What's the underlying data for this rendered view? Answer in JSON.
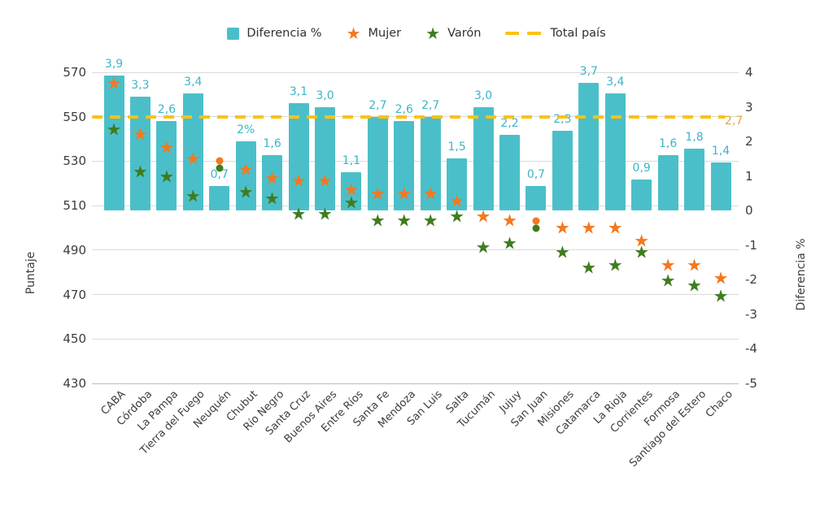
{
  "legend": {
    "bars_label": "Diferencia %",
    "mujer_label": "Mujer",
    "varon_label": "Varón",
    "total_label": "Total país"
  },
  "colors": {
    "bar": "#4bbfc9",
    "bar_value_label": "#3db4c8",
    "mujer": "#f4781f",
    "varon": "#3f7c1e",
    "total_line": "#fcc211",
    "total_line_label": "#e9a62f",
    "tick_text": "#3d3d3d",
    "gridline": "#dadada"
  },
  "chart_data": {
    "type": "bar",
    "categories": [
      "CABA",
      "Córdoba",
      "La Pampa",
      "Tierra del Fuego",
      "Neuquén",
      "Chubut",
      "Río Negro",
      "Santa Cruz",
      "Buenos Aires",
      "Entre Ríos",
      "Santa Fe",
      "Mendoza",
      "San Luis",
      "Salta",
      "Tucumán",
      "Jujuy",
      "San Juan",
      "Misiones",
      "Catamarca",
      "La Rioja",
      "Corrientes",
      "Formosa",
      "Santiago del Estero",
      "Chaco"
    ],
    "series": [
      {
        "name": "Diferencia %",
        "type": "bar",
        "axis": "right",
        "values": [
          3.9,
          3.3,
          2.6,
          3.4,
          0.7,
          2.0,
          1.6,
          3.1,
          3.0,
          1.1,
          2.7,
          2.6,
          2.7,
          1.5,
          3.0,
          2.2,
          0.7,
          2.3,
          3.7,
          3.4,
          0.9,
          1.6,
          1.8,
          1.4
        ],
        "labels": [
          "3,9",
          "3,3",
          "2,6",
          "3,4",
          "0,7",
          "2%",
          "1,6",
          "3,1",
          "3,0",
          "1,1",
          "2,7",
          "2,6",
          "2,7",
          "1,5",
          "3,0",
          "2,2",
          "0,7",
          "2,3",
          "3,7",
          "3,4",
          "0,9",
          "1,6",
          "1,8",
          "1,4"
        ]
      },
      {
        "name": "Mujer",
        "type": "scatter",
        "axis": "left",
        "marker": "star",
        "values": [
          565,
          542,
          536,
          531,
          530,
          526,
          522,
          521,
          521,
          517,
          515,
          515,
          515,
          512,
          505,
          503,
          503,
          500,
          500,
          500,
          494,
          483,
          483,
          477
        ]
      },
      {
        "name": "Varón",
        "type": "scatter",
        "axis": "left",
        "marker": "star",
        "values": [
          544,
          525,
          523,
          514,
          527,
          516,
          513,
          506,
          506,
          511,
          503,
          503,
          503,
          505,
          491,
          493,
          500,
          489,
          482,
          483,
          489,
          476,
          474,
          469
        ]
      }
    ],
    "dot_marker_indices": [
      4,
      16
    ],
    "reference_line": {
      "name": "Total país",
      "axis": "right",
      "value": 2.7,
      "label": "2,7"
    },
    "left_axis": {
      "title": "Puntaje",
      "ticks": [
        "570",
        "550",
        "530",
        "510",
        "490",
        "470",
        "450",
        "430"
      ],
      "range": [
        430,
        570
      ]
    },
    "right_axis": {
      "title": "Diferencia %",
      "ticks": [
        "4",
        "3",
        "2",
        "1",
        "0",
        "-1",
        "-2",
        "-3",
        "-4",
        "-5"
      ],
      "range": [
        -5,
        4
      ]
    },
    "legend_position": "top",
    "grid": "horizontal"
  }
}
